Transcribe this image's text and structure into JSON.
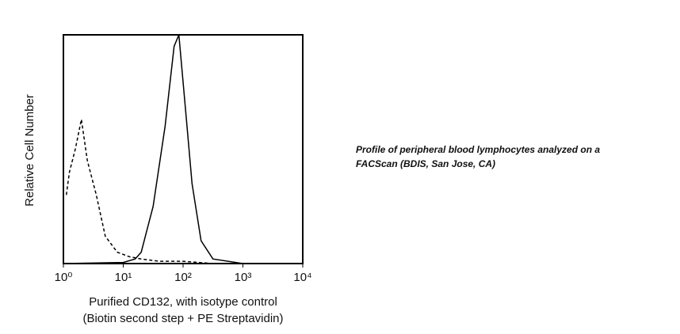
{
  "chart_data": {
    "type": "line",
    "xlabel": [
      "Purified CD132, with isotype control",
      "(Biotin second step + PE Streptavidin)"
    ],
    "ylabel": "Relative Cell Number",
    "annotation": [
      "Profile of peripheral blood lymphocytes analyzed on a",
      "FACScan (BDIS, San Jose, CA)"
    ],
    "xscale": "log",
    "xlim": [
      1,
      10000
    ],
    "xticks": [
      {
        "value": 1,
        "label": "10⁰"
      },
      {
        "value": 10,
        "label": "10¹"
      },
      {
        "value": 100,
        "label": "10²"
      },
      {
        "value": 1000,
        "label": "10³"
      },
      {
        "value": 10000,
        "label": "10⁴"
      }
    ],
    "ylim": [
      0,
      100
    ],
    "grid": false,
    "series": [
      {
        "color": "#000000",
        "linestyle": "dashed",
        "x": [
          1.12,
          1.26,
          1.58,
          2,
          2.51,
          3.55,
          5.01,
          7.94,
          12.6,
          20,
          39.8,
          100,
          316
        ],
        "values": [
          30,
          40,
          50,
          63,
          45,
          30,
          12,
          5,
          3,
          2,
          1,
          1,
          0
        ]
      },
      {
        "color": "#000000",
        "linestyle": "solid",
        "x": [
          1,
          10,
          15.8,
          20,
          25.1,
          31.6,
          50.1,
          70.8,
          85.1,
          112,
          141,
          200,
          316,
          1000
        ],
        "values": [
          0,
          0.5,
          2,
          5,
          15,
          25,
          60,
          95,
          100,
          65,
          35,
          10,
          2,
          0
        ]
      }
    ]
  }
}
